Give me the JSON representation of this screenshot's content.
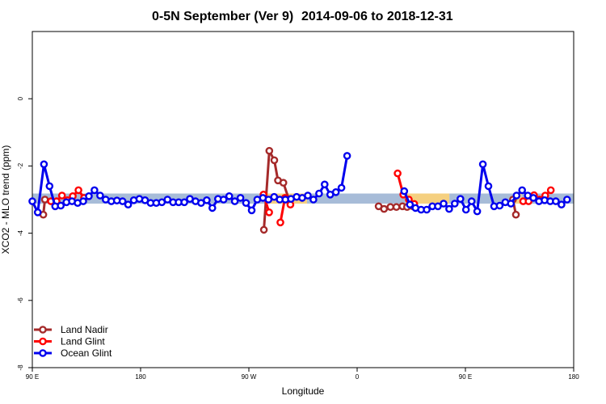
{
  "chart_data": {
    "type": "line",
    "title_left": "0-5N September (Ver 9)",
    "title_right": "2014-09-06 to 2018-12-31",
    "xlabel": "Longitude",
    "ylabel": "XCO2 - MLO trend (ppm)",
    "xlim": [
      -90,
      180
    ],
    "ylim": [
      -8,
      2
    ],
    "xticks": [
      {
        "v": -90,
        "label": "90 E"
      },
      {
        "v": -36,
        "label": "180"
      },
      {
        "v": 18,
        "label": "90 W"
      },
      {
        "v": 72,
        "label": "0"
      },
      {
        "v": 126,
        "label": "90 E"
      },
      {
        "v": 180,
        "label": "180"
      }
    ],
    "yticks": [
      {
        "v": 0,
        "label": "0"
      },
      {
        "v": -2,
        "label": "-2"
      },
      {
        "v": -4,
        "label": "-4"
      },
      {
        "v": -6,
        "label": "-6"
      },
      {
        "v": -8,
        "label": "-8"
      }
    ],
    "band": {
      "y0": -3.12,
      "y1": -2.82,
      "segments": [
        {
          "x0": -90,
          "x1": 26,
          "color": "#a7bcd8"
        },
        {
          "x0": 26,
          "x1": 47,
          "color": "#f5d080"
        },
        {
          "x0": 47,
          "x1": 96,
          "color": "#a7bcd8"
        },
        {
          "x0": 96,
          "x1": 118,
          "color": "#f5d080"
        },
        {
          "x0": 118,
          "x1": 150,
          "color": "#a7bcd8"
        },
        {
          "x0": 150,
          "x1": 154,
          "color": "#f5d080"
        },
        {
          "x0": 154,
          "x1": 180,
          "color": "#a7bcd8"
        }
      ]
    },
    "series": [
      {
        "name": "Land Nadir",
        "color": "#a52a2a",
        "segments": [
          [
            [
              -84.5,
              -3.45
            ],
            [
              -83.7,
              -3.0
            ]
          ],
          [
            [
              25.5,
              -3.9
            ],
            [
              28.2,
              -1.55
            ],
            [
              30.7,
              -1.83
            ],
            [
              32.5,
              -2.43
            ],
            [
              35.2,
              -2.5
            ],
            [
              38.0,
              -3.0
            ]
          ],
          [
            [
              82.7,
              -3.2
            ],
            [
              85.4,
              -3.28
            ],
            [
              88.6,
              -3.22
            ],
            [
              91.6,
              -3.22
            ],
            [
              94.6,
              -3.2
            ],
            [
              96.9,
              -3.22
            ],
            [
              99.8,
              -3.2
            ]
          ],
          [
            [
              149.7,
              -3.0
            ],
            [
              151.2,
              -3.45
            ]
          ]
        ]
      },
      {
        "name": "Land Glint",
        "color": "#ff0000",
        "segments": [
          [
            [
              -80.7,
              -3.05
            ],
            [
              -77.9,
              -3.05
            ],
            [
              -75.2,
              -2.88
            ],
            [
              -72.5,
              -3.02
            ],
            [
              -69.8,
              -2.9
            ],
            [
              -67.0,
              -2.72
            ],
            [
              -64.2,
              -2.95
            ]
          ],
          [
            [
              25.3,
              -2.85
            ],
            [
              28.1,
              -3.38
            ]
          ],
          [
            [
              33.7,
              -3.68
            ],
            [
              36.0,
              -2.95
            ],
            [
              38.7,
              -3.15
            ]
          ],
          [
            [
              92.2,
              -2.22
            ],
            [
              95.0,
              -2.85
            ],
            [
              97.8,
              -3.0
            ],
            [
              100.5,
              -3.13
            ]
          ],
          [
            [
              154.8,
              -3.05
            ],
            [
              157.5,
              -3.05
            ],
            [
              160.2,
              -2.87
            ],
            [
              163.0,
              -3.0
            ],
            [
              165.8,
              -2.88
            ],
            [
              168.6,
              -2.72
            ]
          ]
        ]
      },
      {
        "name": "Ocean Glint",
        "color": "#0000ee",
        "segments": [
          [
            [
              -90,
              -3.05
            ],
            [
              -87.3,
              -3.38
            ],
            [
              -84.2,
              -1.95
            ],
            [
              -81.4,
              -2.6
            ],
            [
              -78.6,
              -3.2
            ],
            [
              -75.8,
              -3.18
            ],
            [
              -73.0,
              -3.08
            ],
            [
              -70.2,
              -3.05
            ],
            [
              -67.4,
              -3.1
            ],
            [
              -64.6,
              -3.05
            ],
            [
              -61.8,
              -2.9
            ],
            [
              -59.0,
              -2.72
            ],
            [
              -56.2,
              -2.88
            ],
            [
              -53.4,
              -3.0
            ],
            [
              -50.6,
              -3.05
            ],
            [
              -47.8,
              -3.03
            ],
            [
              -45.0,
              -3.05
            ],
            [
              -42.2,
              -3.15
            ],
            [
              -39.4,
              -3.02
            ],
            [
              -36.6,
              -2.98
            ],
            [
              -33.8,
              -3.02
            ],
            [
              -31.0,
              -3.1
            ],
            [
              -28.2,
              -3.1
            ],
            [
              -25.4,
              -3.08
            ],
            [
              -22.6,
              -3.0
            ],
            [
              -19.8,
              -3.08
            ],
            [
              -17.0,
              -3.08
            ],
            [
              -14.2,
              -3.08
            ],
            [
              -11.4,
              -2.98
            ],
            [
              -8.6,
              -3.05
            ],
            [
              -5.8,
              -3.1
            ],
            [
              -3.0,
              -3.02
            ],
            [
              -0.2,
              -3.25
            ],
            [
              2.6,
              -2.98
            ],
            [
              5.4,
              -3.0
            ],
            [
              8.2,
              -2.9
            ],
            [
              11.0,
              -3.05
            ],
            [
              13.8,
              -2.95
            ],
            [
              16.6,
              -3.1
            ],
            [
              19.4,
              -3.32
            ],
            [
              22.2,
              -3.0
            ],
            [
              25.0,
              -2.95
            ],
            [
              27.8,
              -3.0
            ],
            [
              30.6,
              -2.92
            ],
            [
              33.4,
              -3.0
            ],
            [
              36.2,
              -3.0
            ],
            [
              39.0,
              -2.98
            ],
            [
              41.8,
              -2.92
            ],
            [
              44.6,
              -2.95
            ],
            [
              47.4,
              -2.88
            ],
            [
              50.2,
              -3.0
            ],
            [
              53.0,
              -2.82
            ],
            [
              55.8,
              -2.55
            ],
            [
              58.6,
              -2.85
            ],
            [
              61.4,
              -2.78
            ],
            [
              64.2,
              -2.65
            ],
            [
              67.0,
              -1.7
            ]
          ],
          [
            [
              95.5,
              -2.75
            ],
            [
              98.3,
              -3.15
            ],
            [
              101.1,
              -3.25
            ],
            [
              103.9,
              -3.3
            ],
            [
              106.7,
              -3.3
            ],
            [
              109.5,
              -3.2
            ],
            [
              112.3,
              -3.2
            ],
            [
              115.1,
              -3.12
            ],
            [
              117.9,
              -3.28
            ],
            [
              120.7,
              -3.12
            ],
            [
              123.5,
              -2.98
            ],
            [
              126.3,
              -3.3
            ],
            [
              129.1,
              -3.05
            ],
            [
              131.9,
              -3.35
            ],
            [
              134.7,
              -1.95
            ],
            [
              137.5,
              -2.6
            ],
            [
              140.3,
              -3.2
            ],
            [
              143.1,
              -3.18
            ],
            [
              145.9,
              -3.08
            ],
            [
              148.7,
              -3.12
            ],
            [
              151.5,
              -2.88
            ],
            [
              154.3,
              -2.72
            ],
            [
              157.1,
              -2.88
            ],
            [
              159.9,
              -2.95
            ],
            [
              162.7,
              -3.05
            ],
            [
              165.5,
              -3.02
            ],
            [
              168.3,
              -3.05
            ],
            [
              171.1,
              -3.05
            ],
            [
              173.9,
              -3.15
            ],
            [
              176.7,
              -3.0
            ]
          ]
        ]
      }
    ],
    "legend_position": "bottom-left",
    "legend": [
      "Land Nadir",
      "Land Glint",
      "Ocean Glint"
    ]
  }
}
